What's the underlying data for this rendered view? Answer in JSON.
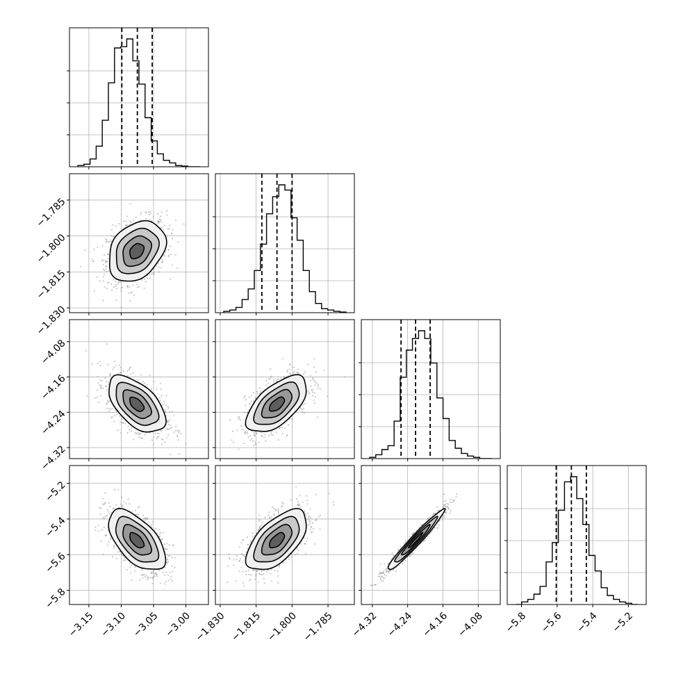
{
  "chart_data": {
    "type": "corner",
    "parameters": [
      {
        "range": [
          -3.18,
          -2.965
        ],
        "ticks": [
          -3.15,
          -3.1,
          -3.05,
          -3.0
        ],
        "tick_labels": [
          "−3.15",
          "−3.10",
          "−3.05",
          "−3.00"
        ],
        "mean": -3.076,
        "sigma": 0.022,
        "quantiles": [
          -3.099,
          -3.075,
          -3.052
        ],
        "hist_counts": [
          0.01,
          0.02,
          0.06,
          0.16,
          0.36,
          0.65,
          0.92,
          0.93,
          0.99,
          0.82,
          0.64,
          0.38,
          0.2,
          0.1,
          0.05,
          0.03,
          0.01,
          0.005,
          0.0,
          0.0
        ]
      },
      {
        "range": [
          -1.832,
          -1.774
        ],
        "ticks": [
          -1.83,
          -1.815,
          -1.8,
          -1.785
        ],
        "tick_labels": [
          "−1.830",
          "−1.815",
          "−1.800",
          "−1.785"
        ],
        "mean": -1.8063,
        "sigma": 0.0063,
        "quantiles": [
          -1.8126,
          -1.8063,
          -1.8
        ],
        "hist_counts": [
          0.01,
          0.02,
          0.04,
          0.1,
          0.18,
          0.32,
          0.52,
          0.75,
          0.88,
          0.97,
          0.93,
          0.72,
          0.55,
          0.32,
          0.16,
          0.07,
          0.03,
          0.02,
          0.01,
          0.005
        ]
      },
      {
        "range": [
          -4.345,
          -4.03
        ],
        "ticks": [
          -4.32,
          -4.24,
          -4.16,
          -4.08
        ],
        "tick_labels": [
          "−4.32",
          "−4.24",
          "−4.16",
          "−4.08"
        ],
        "mean": -4.222,
        "sigma": 0.032,
        "quantiles": [
          -4.255,
          -4.222,
          -4.189
        ],
        "hist_counts": [
          0.01,
          0.03,
          0.07,
          0.1,
          0.29,
          0.63,
          0.84,
          0.93,
          0.99,
          0.93,
          0.74,
          0.47,
          0.31,
          0.14,
          0.08,
          0.04,
          0.02,
          0.01,
          0.0,
          0.0
        ]
      },
      {
        "range": [
          -5.88,
          -5.1
        ],
        "ticks": [
          -5.8,
          -5.6,
          -5.4,
          -5.2
        ],
        "tick_labels": [
          "−5.8",
          "−5.6",
          "−5.4",
          "−5.2"
        ],
        "mean": -5.52,
        "sigma": 0.085,
        "quantiles": [
          -5.605,
          -5.52,
          -5.436
        ],
        "hist_counts": [
          0.0,
          0.02,
          0.04,
          0.08,
          0.14,
          0.33,
          0.48,
          0.73,
          0.95,
          0.99,
          0.82,
          0.62,
          0.38,
          0.26,
          0.13,
          0.07,
          0.04,
          0.02,
          0.01,
          0.0
        ]
      }
    ],
    "correlations": {
      "1-0": 0.3,
      "2-0": -0.55,
      "2-1": 0.6,
      "3-0": -0.58,
      "3-1": 0.6,
      "3-2": 0.97
    },
    "contour_levels_sigma": [
      0.5,
      1.0,
      1.5,
      2.0
    ],
    "grid": true,
    "colors": {
      "hist": "#000000",
      "points": "#9a9a9a",
      "fill": "#000000",
      "grid": "#b0b0b0",
      "frame": "#000000"
    }
  }
}
